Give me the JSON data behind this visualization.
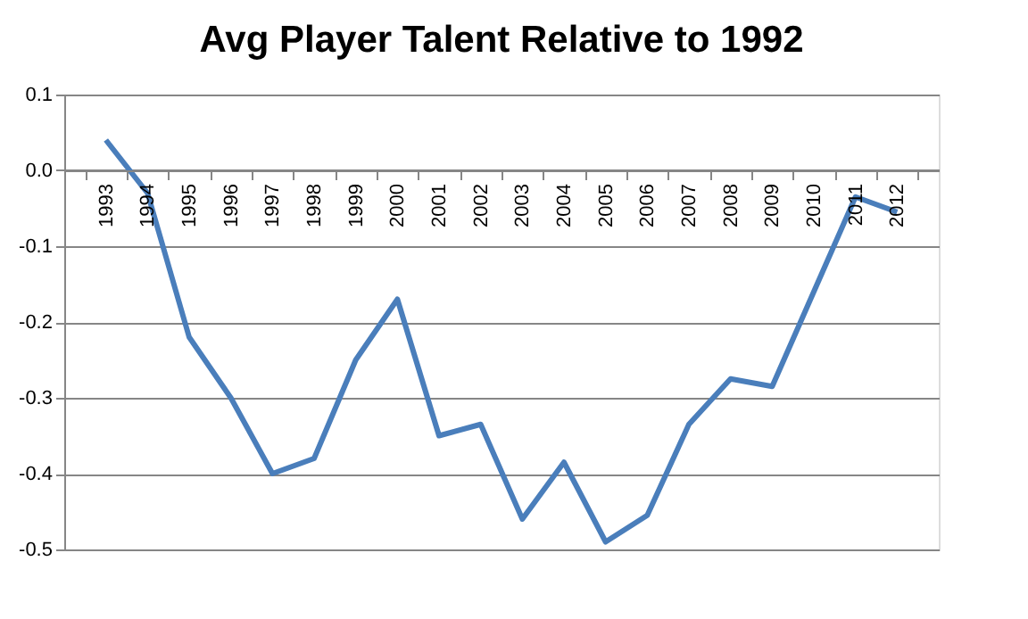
{
  "chart_data": {
    "type": "line",
    "title": "Avg Player Talent Relative to 1992",
    "categories": [
      "1993",
      "1994",
      "1995",
      "1996",
      "1997",
      "1998",
      "1999",
      "2000",
      "2001",
      "2002",
      "2003",
      "2004",
      "2005",
      "2006",
      "2007",
      "2008",
      "2009",
      "2010",
      "2011",
      "2012"
    ],
    "series": [
      {
        "color": "#4a7ebb",
        "values": [
          0.04,
          -0.03,
          -0.22,
          -0.3,
          -0.4,
          -0.38,
          -0.25,
          -0.17,
          -0.35,
          -0.335,
          -0.46,
          -0.385,
          -0.49,
          -0.455,
          -0.335,
          -0.275,
          -0.285,
          -0.16,
          -0.035,
          -0.055
        ]
      }
    ],
    "ylim": [
      -0.5,
      0.1
    ],
    "yticks": [
      -0.5,
      -0.4,
      -0.3,
      -0.2,
      -0.1,
      {
        "value": 0,
        "label": "0.0"
      },
      0.1
    ],
    "grid": "y",
    "marker": "none",
    "line_style": "solid"
  }
}
